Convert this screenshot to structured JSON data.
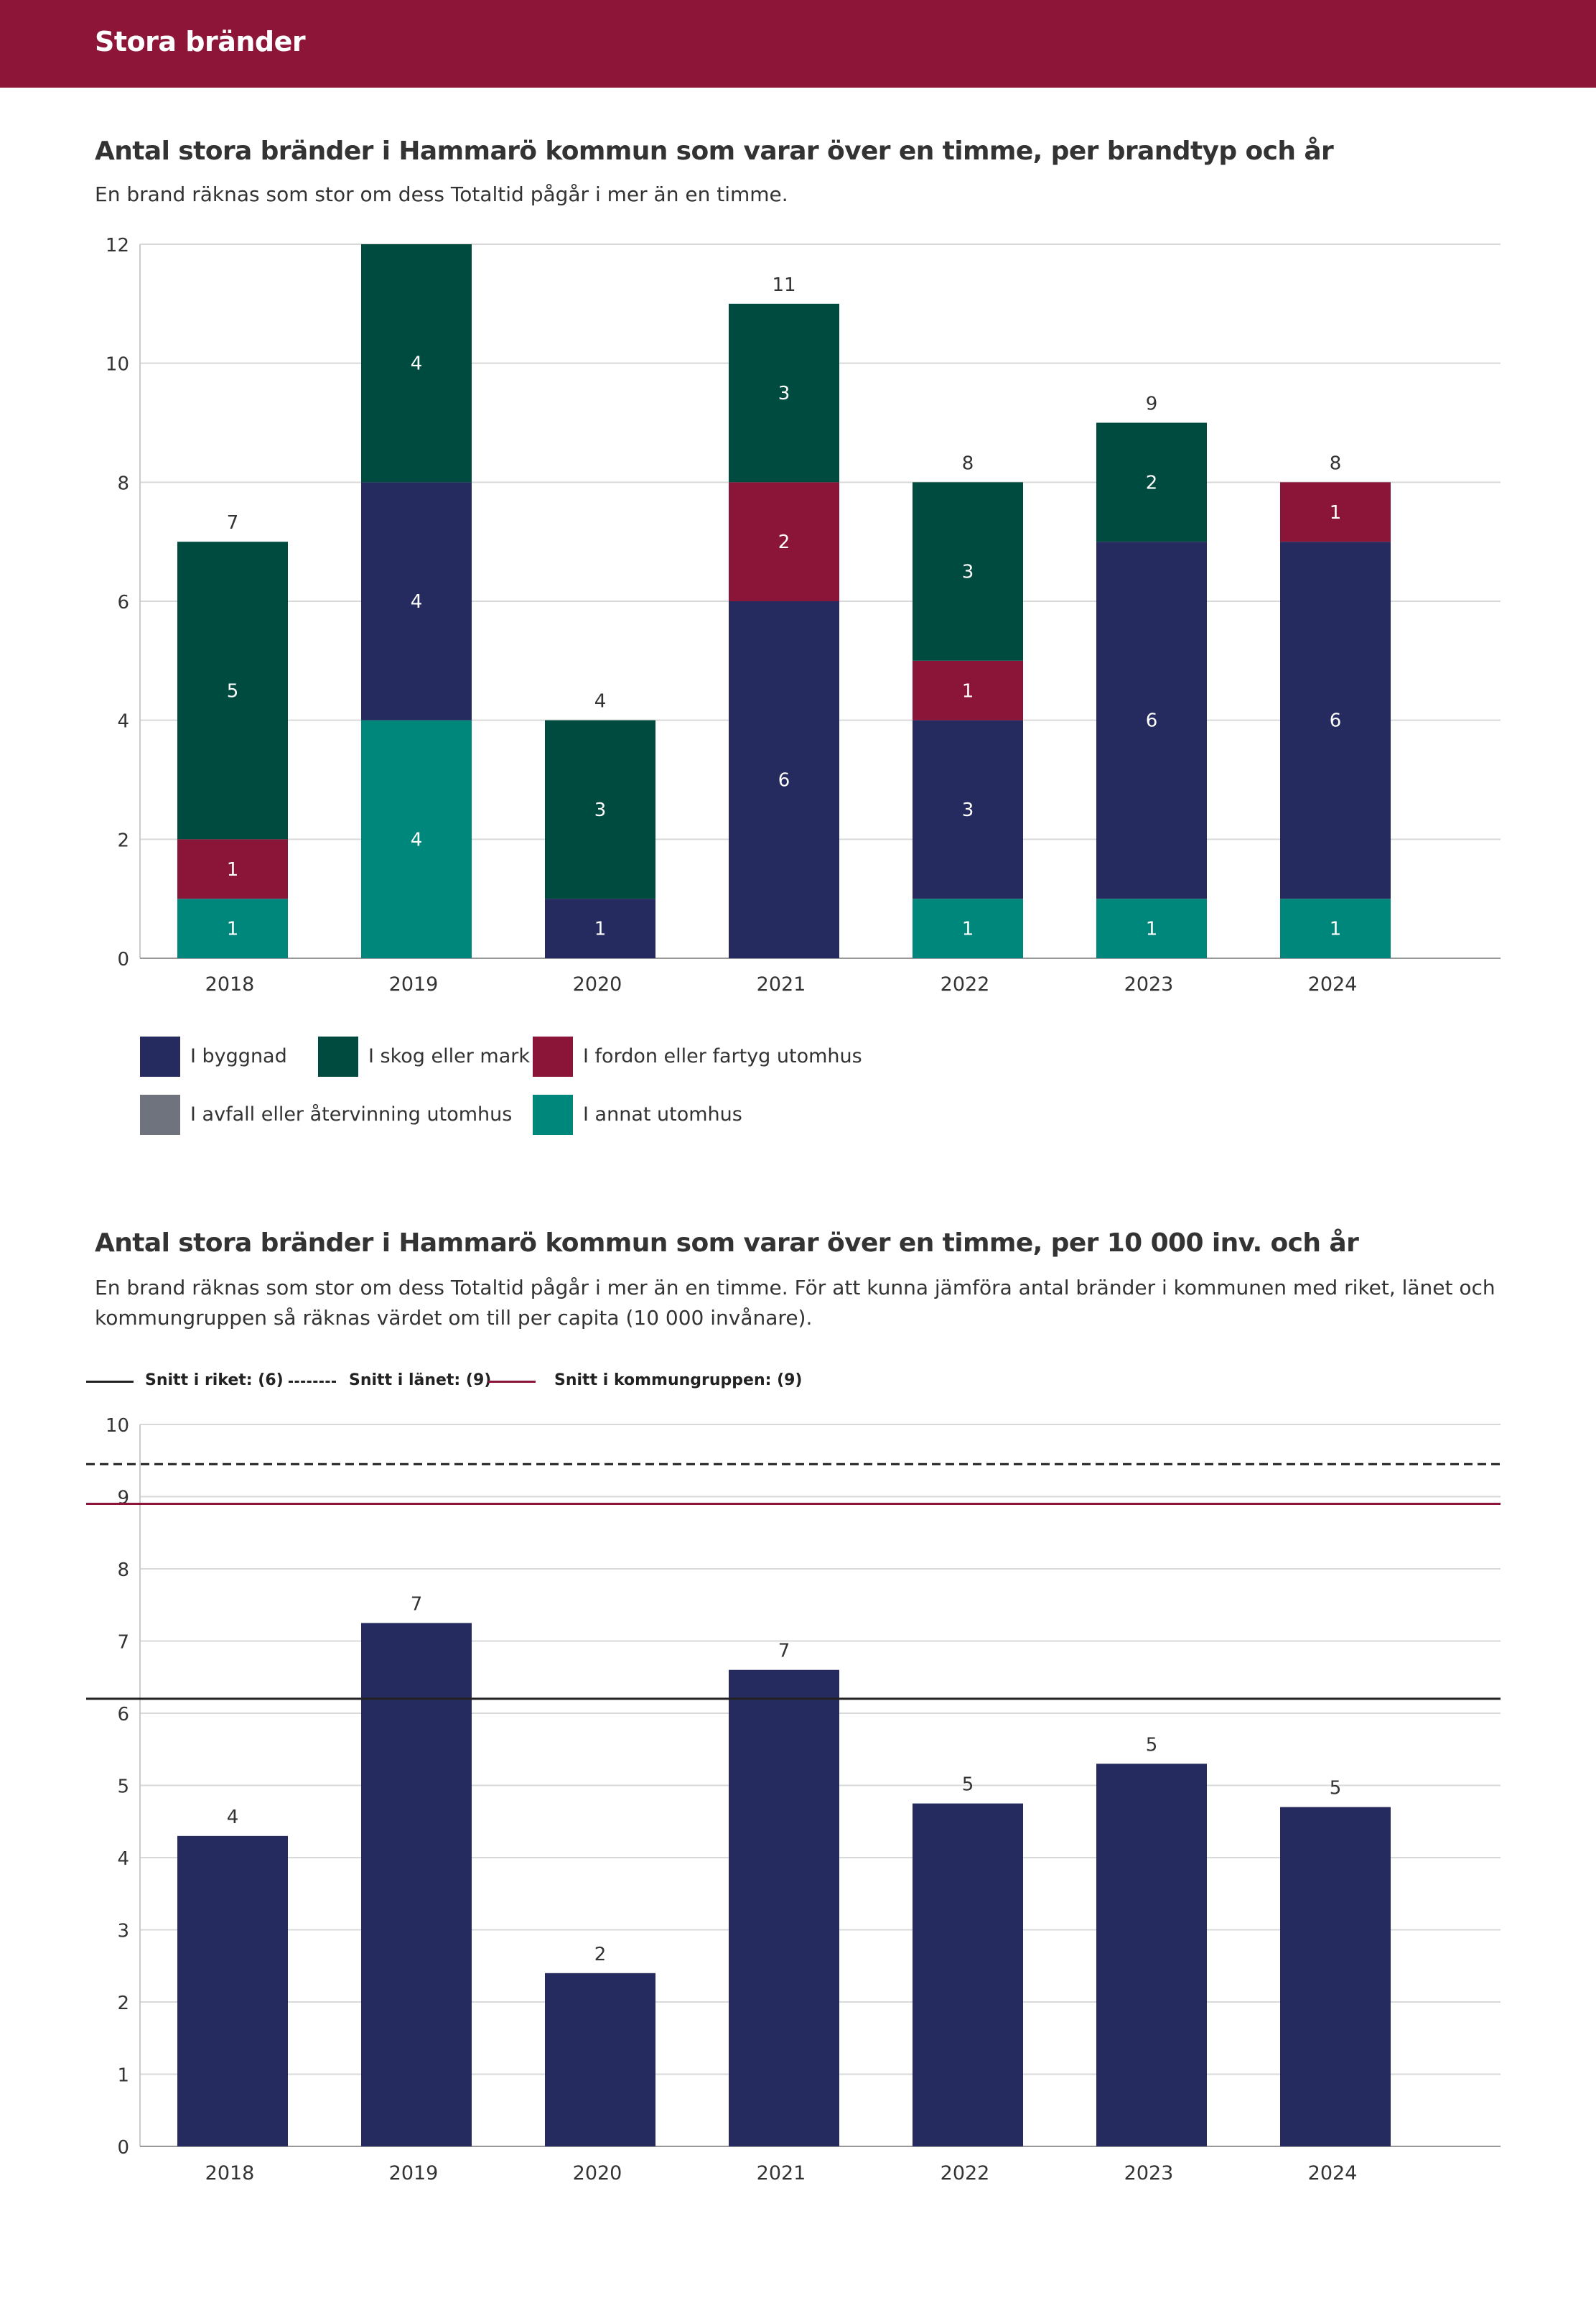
{
  "banner": {
    "title": "Stora bränder",
    "color": "#8c1538"
  },
  "chart1": {
    "title": "Antal stora bränder i Hammarö kommun som varar över en timme, per brandtyp och år",
    "subtitle": "En brand räknas som stor om dess Totaltid pågår i mer än en timme."
  },
  "chart2": {
    "title": "Antal stora bränder i Hammarö kommun som varar över en timme, per 10 000 inv. och år",
    "subtitle_line1": "En brand räknas som stor om dess Totaltid pågår i mer än en timme. För att kunna jämföra antal bränder i kommunen med riket, länet och",
    "subtitle_line2": "kommungruppen så räknas värdet om till per capita (10 000 invånare)."
  },
  "legend1": [
    {
      "label": "I byggnad",
      "color": "#252b5e"
    },
    {
      "label": "I skog eller mark",
      "color": "#004b40"
    },
    {
      "label": "I fordon eller fartyg utomhus",
      "color": "#8a1538"
    },
    {
      "label": "I avfall eller återvinning utomhus",
      "color": "#6e737d"
    },
    {
      "label": "I annat utomhus",
      "color": "#00877b"
    }
  ],
  "legend2": [
    {
      "label": "Snitt i riket: (6)",
      "style": "solid",
      "color": "#222222"
    },
    {
      "label": "Snitt i länet: (9)",
      "style": "dashed",
      "color": "#222222"
    },
    {
      "label": "Snitt i kommungruppen: (9)",
      "style": "solid",
      "color": "#8a1538"
    }
  ],
  "chart_data": [
    {
      "type": "bar",
      "stacked": true,
      "title": "Antal stora bränder i Hammarö kommun som varar över en timme, per brandtyp och år",
      "categories": [
        "2018",
        "2019",
        "2020",
        "2021",
        "2022",
        "2023",
        "2024"
      ],
      "series": [
        {
          "name": "I annat utomhus",
          "color": "#00877b",
          "values": [
            1,
            4,
            0,
            0,
            1,
            1,
            1
          ]
        },
        {
          "name": "I byggnad",
          "color": "#252b5e",
          "values": [
            0,
            4,
            1,
            6,
            3,
            6,
            6
          ]
        },
        {
          "name": "I fordon eller fartyg utomhus",
          "color": "#8a1538",
          "values": [
            1,
            0,
            0,
            2,
            1,
            0,
            1
          ]
        },
        {
          "name": "I skog eller mark",
          "color": "#004b40",
          "values": [
            5,
            4,
            3,
            3,
            3,
            2,
            0
          ]
        },
        {
          "name": "I avfall eller återvinning utomhus",
          "color": "#6e737d",
          "values": [
            0,
            0,
            0,
            0,
            0,
            0,
            0
          ]
        }
      ],
      "totals": [
        7,
        12,
        4,
        11,
        8,
        9,
        8
      ],
      "total_labels": [
        "7",
        "",
        "4",
        "11",
        "8",
        "9",
        "8"
      ],
      "yticks": [
        0,
        2,
        4,
        6,
        8,
        10,
        12
      ],
      "ylim": [
        0,
        12
      ],
      "grid": true
    },
    {
      "type": "bar",
      "title": "Antal stora bränder i Hammarö kommun som varar över en timme, per 10 000 inv. och år",
      "categories": [
        "2018",
        "2019",
        "2020",
        "2021",
        "2022",
        "2023",
        "2024"
      ],
      "values": [
        4.3,
        7.25,
        2.4,
        6.6,
        4.75,
        5.3,
        4.7
      ],
      "value_labels": [
        "4",
        "7",
        "2",
        "7",
        "5",
        "5",
        "5"
      ],
      "bar_color": "#252b5e",
      "reference_lines": [
        {
          "name": "Snitt i riket",
          "value": 6.2,
          "style": "solid",
          "color": "#222222"
        },
        {
          "name": "Snitt i länet",
          "value": 9.45,
          "style": "dashed",
          "color": "#222222"
        },
        {
          "name": "Snitt i kommungruppen",
          "value": 8.9,
          "style": "solid",
          "color": "#8a1538"
        }
      ],
      "yticks": [
        0,
        1,
        2,
        3,
        4,
        5,
        6,
        7,
        8,
        9,
        10
      ],
      "ylim": [
        0,
        10
      ],
      "grid": true
    }
  ]
}
